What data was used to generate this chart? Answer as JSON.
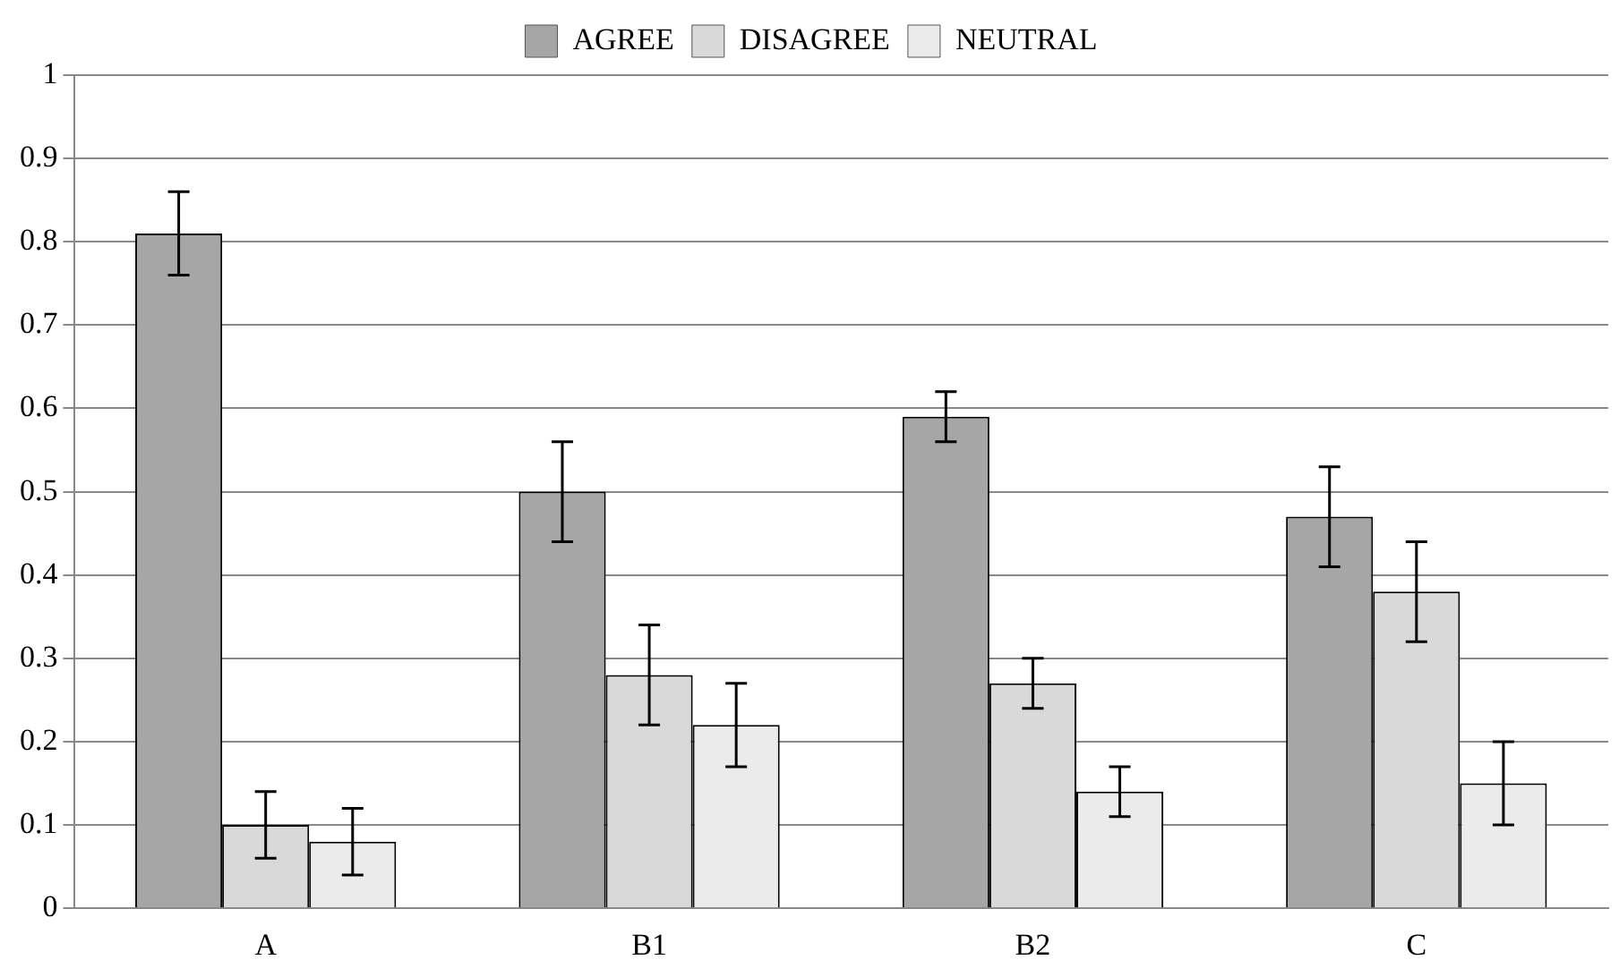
{
  "chart_data": {
    "type": "bar",
    "categories": [
      "A",
      "B1",
      "B2",
      "C"
    ],
    "series": [
      {
        "name": "AGREE",
        "color": "#a6a6a6",
        "values": [
          0.81,
          0.5,
          0.59,
          0.47
        ],
        "errors": [
          0.05,
          0.06,
          0.03,
          0.06
        ]
      },
      {
        "name": "DISAGREE",
        "color": "#d9d9d9",
        "values": [
          0.1,
          0.28,
          0.27,
          0.38
        ],
        "errors": [
          0.04,
          0.06,
          0.03,
          0.06
        ]
      },
      {
        "name": "NEUTRAL",
        "color": "#ebebeb",
        "values": [
          0.08,
          0.22,
          0.14,
          0.15
        ],
        "errors": [
          0.04,
          0.05,
          0.03,
          0.05
        ]
      }
    ],
    "ylim": [
      0,
      1
    ],
    "yticks": [
      0,
      0.1,
      0.2,
      0.3,
      0.4,
      0.5,
      0.6,
      0.7,
      0.8,
      0.9,
      1
    ],
    "grid": "y",
    "legend": "top"
  }
}
